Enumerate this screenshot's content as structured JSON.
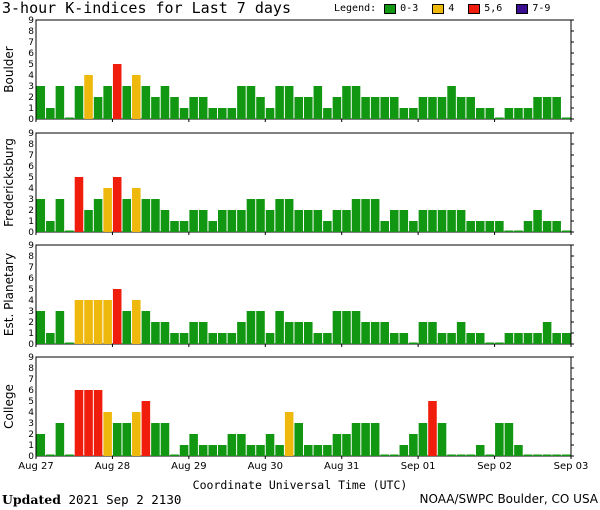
{
  "page": {
    "title": "3-hour K-indices for Last 7 days",
    "updated_label": "Updated",
    "updated_value": "2021 Sep  2 2130",
    "credit": "NOAA/SWPC Boulder, CO USA"
  },
  "legend": {
    "label": "Legend:",
    "items": [
      {
        "label": "0-3",
        "color": "#119711"
      },
      {
        "label": "4",
        "color": "#eeb80c"
      },
      {
        "label": "5,6",
        "color": "#f01c0c"
      },
      {
        "label": "7-9",
        "color": "#3a0f8f"
      }
    ]
  },
  "chart_data": {
    "type": "bar",
    "xlabel": "Coordinate Universal Time (UTC)",
    "x_ticks": [
      "Aug 27",
      "Aug 28",
      "Aug 29",
      "Aug 30",
      "Aug 31",
      "Sep 01",
      "Sep 02",
      "Sep 03"
    ],
    "y_ticks": [
      "0",
      "1",
      "2",
      "3",
      "4",
      "5",
      "6",
      "7",
      "8",
      "9"
    ],
    "ylim": [
      0,
      9
    ],
    "bars_per_day": 8,
    "color_scale": {
      "green": "0-3",
      "yellow": "4",
      "red": "5,6",
      "purple": "7-9"
    },
    "series": [
      {
        "name": "Boulder",
        "values": [
          3,
          1,
          3,
          0,
          3,
          4,
          2,
          3,
          5,
          3,
          4,
          3,
          2,
          3,
          2,
          1,
          2,
          2,
          1,
          1,
          1,
          3,
          3,
          2,
          1,
          3,
          3,
          2,
          2,
          3,
          1,
          2,
          3,
          3,
          2,
          2,
          2,
          2,
          1,
          1,
          2,
          2,
          2,
          3,
          2,
          2,
          1,
          1,
          0,
          1,
          1,
          1,
          2,
          2,
          2,
          0
        ]
      },
      {
        "name": "Fredericksburg",
        "values": [
          3,
          1,
          3,
          0,
          5,
          2,
          3,
          4,
          5,
          3,
          4,
          3,
          3,
          2,
          1,
          1,
          2,
          2,
          1,
          2,
          2,
          2,
          3,
          3,
          2,
          3,
          3,
          2,
          2,
          2,
          1,
          2,
          2,
          3,
          3,
          3,
          1,
          2,
          2,
          1,
          2,
          2,
          2,
          2,
          2,
          1,
          1,
          1,
          1,
          0,
          0,
          1,
          2,
          1,
          1,
          0
        ]
      },
      {
        "name": "Est. Planetary",
        "values": [
          3,
          1,
          3,
          0,
          4,
          4,
          4,
          4,
          5,
          3,
          4,
          3,
          2,
          2,
          1,
          1,
          2,
          2,
          1,
          1,
          1,
          2,
          3,
          3,
          1,
          3,
          2,
          2,
          2,
          1,
          1,
          3,
          3,
          3,
          2,
          2,
          2,
          1,
          1,
          0,
          2,
          2,
          1,
          1,
          2,
          1,
          1,
          0,
          0,
          1,
          1,
          1,
          1,
          2,
          1,
          1
        ]
      },
      {
        "name": "College",
        "values": [
          2,
          0,
          3,
          0,
          6,
          6,
          6,
          4,
          3,
          3,
          4,
          5,
          3,
          3,
          0,
          1,
          2,
          1,
          1,
          1,
          2,
          2,
          1,
          1,
          2,
          1,
          4,
          3,
          1,
          1,
          1,
          2,
          2,
          3,
          3,
          3,
          0,
          0,
          1,
          2,
          3,
          5,
          3,
          0,
          0,
          0,
          1,
          0,
          3,
          3,
          1,
          0,
          0,
          0,
          0,
          0
        ]
      }
    ]
  }
}
